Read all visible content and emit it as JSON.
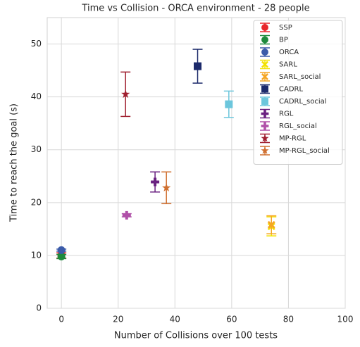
{
  "chart_data": {
    "type": "errorbar-scatter",
    "title": "Time vs Collision - ORCA environment - 28 people",
    "x_label": "Number of Collisions over 100 tests",
    "y_label": "Time to reach the goal (s)",
    "xlim": [
      -5,
      100
    ],
    "ylim": [
      0,
      55
    ],
    "xticks": [
      0,
      20,
      40,
      60,
      80,
      100
    ],
    "yticks": [
      0,
      10,
      20,
      30,
      40,
      50
    ],
    "grid": true,
    "legend": "upper right",
    "series": [
      {
        "name": "SSP",
        "color": "#e8262b",
        "marker": "circle",
        "x": [
          0
        ],
        "values": [
          10
        ],
        "errors": [
          0.5
        ]
      },
      {
        "name": "BP",
        "color": "#1d8a3c",
        "marker": "circle",
        "x": [
          0
        ],
        "values": [
          9.8
        ],
        "errors": [
          0.4
        ]
      },
      {
        "name": "ORCA",
        "color": "#3b5ba9",
        "marker": "circle",
        "x": [
          0
        ],
        "values": [
          11
        ],
        "errors": [
          0.2
        ]
      },
      {
        "name": "SARL",
        "color": "#f2e200",
        "marker": "x",
        "x": [
          74
        ],
        "values": [
          15.5
        ],
        "errors": [
          1.8
        ]
      },
      {
        "name": "SARL_social",
        "color": "#f5a623",
        "marker": "x",
        "x": [
          74
        ],
        "values": [
          15.8
        ],
        "errors": [
          1.7
        ]
      },
      {
        "name": "CADRL",
        "color": "#1c2a6b",
        "marker": "square",
        "x": [
          48
        ],
        "values": [
          45.8
        ],
        "errors": [
          3.2
        ]
      },
      {
        "name": "CADRL_social",
        "color": "#6cc6dc",
        "marker": "square",
        "x": [
          59
        ],
        "values": [
          38.6
        ],
        "errors": [
          2.5
        ]
      },
      {
        "name": "RGL",
        "color": "#6a2181",
        "marker": "plus",
        "x": [
          33
        ],
        "values": [
          23.9
        ],
        "errors": [
          1.9
        ]
      },
      {
        "name": "RGL_social",
        "color": "#b050a8",
        "marker": "plus",
        "x": [
          23
        ],
        "values": [
          17.6
        ],
        "errors": [
          0.3
        ]
      },
      {
        "name": "MP-RGL",
        "color": "#a02030",
        "marker": "star",
        "x": [
          22.6
        ],
        "values": [
          40.5
        ],
        "errors": [
          4.2
        ]
      },
      {
        "name": "MP-RGL_social",
        "color": "#d07030",
        "marker": "star",
        "x": [
          37
        ],
        "values": [
          22.8
        ],
        "errors": [
          3
        ]
      }
    ]
  }
}
